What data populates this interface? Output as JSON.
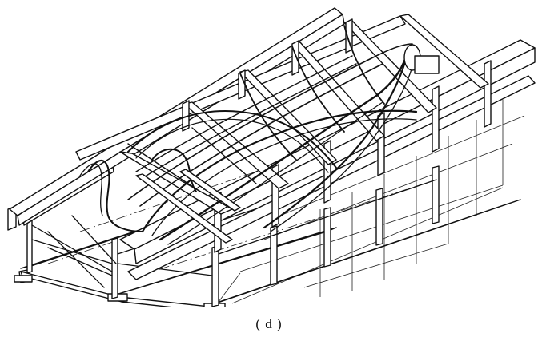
{
  "figure": {
    "caption": "( d )"
  }
}
